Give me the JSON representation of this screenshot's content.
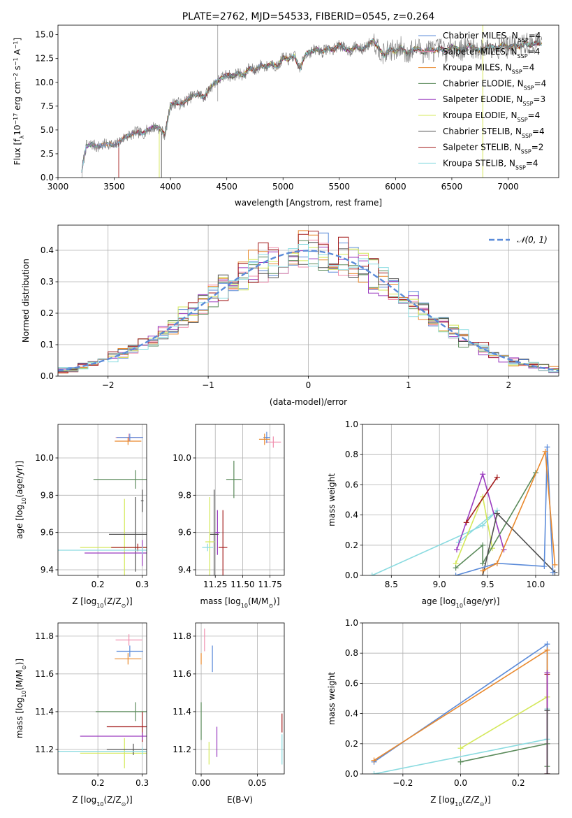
{
  "chart_data": [
    {
      "id": "spectrum",
      "type": "line",
      "title": "PLATE=2762, MJD=54533, FIBERID=0545, z=0.264",
      "xlabel": "wavelength [Angstrom, rest frame]",
      "ylabel_parts": [
        "Flux [f",
        "λ",
        "10",
        "−17",
        " erg cm",
        "−2",
        " s",
        "−1",
        " A",
        "−1",
        "]"
      ],
      "xlim": [
        3000,
        7450
      ],
      "ylim": [
        0,
        16
      ],
      "xticks": [
        3000,
        3500,
        4000,
        4500,
        5000,
        5500,
        6000,
        6500,
        7000
      ],
      "yticks": [
        0.0,
        2.5,
        5.0,
        7.5,
        10.0,
        12.5,
        15.0
      ],
      "grid": false,
      "legend_position": "right",
      "observed_spectrum": {
        "color": "#777777",
        "x": [
          3200,
          3250,
          3300,
          3350,
          3400,
          3450,
          3500,
          3550,
          3600,
          3650,
          3700,
          3750,
          3800,
          3850,
          3900,
          3950,
          4000,
          4050,
          4100,
          4150,
          4200,
          4250,
          4300,
          4350,
          4400,
          4450,
          4500,
          4550,
          4600,
          4650,
          4700,
          4750,
          4800,
          4850,
          4900,
          4950,
          5000,
          5050,
          5100,
          5150,
          5200,
          5250,
          5300,
          5350,
          5400,
          5450,
          5500,
          5550,
          5600,
          5650,
          5700,
          5750,
          5800,
          5850,
          5900,
          5950,
          6000,
          6050,
          6100,
          6150,
          6200,
          6250,
          6300,
          6350,
          6400,
          6450,
          6500,
          6550,
          6600,
          6650,
          6700,
          6750,
          6800,
          6850,
          6900,
          6950,
          7000,
          7050,
          7100,
          7150,
          7200,
          7250,
          7300
        ],
        "y": [
          0.0,
          3.3,
          3.5,
          3.2,
          3.4,
          3.6,
          3.3,
          3.8,
          4.3,
          4.5,
          4.8,
          4.6,
          5.0,
          5.3,
          5.2,
          4.5,
          7.6,
          7.9,
          7.7,
          8.2,
          8.6,
          8.8,
          8.4,
          9.4,
          10.0,
          10.4,
          10.8,
          10.6,
          11.0,
          10.7,
          11.5,
          11.2,
          11.8,
          11.6,
          12.0,
          11.6,
          12.6,
          12.4,
          12.8,
          11.4,
          13.0,
          13.2,
          13.5,
          13.2,
          13.6,
          13.4,
          14.0,
          13.5,
          13.3,
          13.8,
          13.4,
          13.9,
          14.4,
          13.6,
          12.8,
          13.5,
          13.2,
          13.7,
          13.0,
          13.4,
          13.6,
          13.1,
          13.5,
          13.3,
          13.6,
          13.2,
          13.8,
          13.5,
          13.4,
          13.9,
          13.6,
          13.3,
          13.7,
          13.8,
          13.5,
          14.0,
          13.6,
          13.9,
          13.7,
          14.1,
          13.9,
          14.2,
          14.0
        ]
      },
      "series": [
        {
          "name_parts": [
            "Chabrier MILES, N",
            "SSP",
            "=4"
          ],
          "color": "#5b8bd9"
        },
        {
          "name_parts": [
            "Salpeter MILES, N",
            "SSP",
            "=4"
          ],
          "color": "#f08cac"
        },
        {
          "name_parts": [
            "Kroupa MILES, N",
            "SSP",
            "=4"
          ],
          "color": "#e9892e"
        },
        {
          "name_parts": [
            "Chabrier ELODIE, N",
            "SSP",
            "=4"
          ],
          "color": "#5a8a5a"
        },
        {
          "name_parts": [
            "Salpeter ELODIE, N",
            "SSP",
            "=3"
          ],
          "color": "#9a3bbf"
        },
        {
          "name_parts": [
            "Kroupa ELODIE, N",
            "SSP",
            "=4"
          ],
          "color": "#d4e85a"
        },
        {
          "name_parts": [
            "Chabrier STELIB, N",
            "SSP",
            "=4"
          ],
          "color": "#505050"
        },
        {
          "name_parts": [
            "Salpeter STELIB, N",
            "SSP",
            "=2"
          ],
          "color": "#a31c1c"
        },
        {
          "name_parts": [
            "Kroupa STELIB, N",
            "SSP",
            "=4"
          ],
          "color": "#8adbe0"
        }
      ],
      "model_x_range": [
        3200,
        7300
      ],
      "model_start": {
        "Kroupa ELODIE": 3900,
        "Salpeter STELIB": 3540,
        "Chabrier STELIB": 3920
      }
    },
    {
      "id": "residuals",
      "type": "line",
      "xlabel": "(data-model)/error",
      "ylabel": "Normed distribution",
      "xlim": [
        -2.5,
        2.5
      ],
      "ylim": [
        0,
        0.48
      ],
      "xticks": [
        -2,
        -1,
        0,
        1,
        2
      ],
      "yticks": [
        0.0,
        0.1,
        0.2,
        0.3,
        0.4
      ],
      "grid": true,
      "legend_position": "top-right",
      "legend": "𝒩(0, 1)",
      "gaussian_color": "#5b8bd9",
      "bin_width": 0.1,
      "bin_start": -2.5
    },
    {
      "id": "age-vs-Z",
      "type": "scatter",
      "xlabel_parts": [
        "Z [log",
        "10",
        "(Z/Z",
        "⊙",
        ")]"
      ],
      "ylabel_parts": [
        "age  [log",
        "10",
        "(age/yr)]"
      ],
      "xlim": [
        0.11,
        0.31
      ],
      "ylim": [
        9.37,
        10.18
      ],
      "xticks": [
        0.2,
        0.3
      ],
      "yticks": [
        9.4,
        9.6,
        9.8,
        10.0
      ],
      "grid": true,
      "points": [
        {
          "color": "#f08cac",
          "x": 0.27,
          "y": 10.11,
          "xerr": 0.03,
          "yerr": 0.02
        },
        {
          "color": "#5b8bd9",
          "x": 0.272,
          "y": 10.11,
          "xerr": 0.03,
          "yerr": 0.02
        },
        {
          "color": "#e9892e",
          "x": 0.268,
          "y": 10.09,
          "xerr": 0.03,
          "yerr": 0.02
        },
        {
          "color": "#5a8a5a",
          "x": 0.285,
          "y": 9.885,
          "xerr": 0.095,
          "yerr": 0.05
        },
        {
          "color": "#505050",
          "x": 0.3,
          "y": 9.77,
          "xerr": 0.003,
          "yerr": 0.06
        },
        {
          "color": "#d4e85a",
          "x": 0.26,
          "y": 9.52,
          "xerr": 0.1,
          "yerr": 0.26
        },
        {
          "color": "#505050",
          "x": 0.285,
          "y": 9.59,
          "xerr": 0.06,
          "yerr": 0.2
        },
        {
          "color": "#a31c1c",
          "x": 0.29,
          "y": 9.52,
          "xerr": 0.06,
          "yerr": 0.02
        },
        {
          "color": "#9a3bbf",
          "x": 0.3,
          "y": 9.49,
          "xerr": 0.13,
          "yerr": 0.07
        },
        {
          "color": "#8adbe0",
          "x": 0.3,
          "y": 9.505,
          "xerr": 0.19,
          "yerr": 0.02
        }
      ]
    },
    {
      "id": "age-vs-mass",
      "type": "scatter",
      "xlabel_parts": [
        "mass [log",
        "10",
        "(M/M",
        "⊙",
        ")]"
      ],
      "xlim": [
        11.07,
        11.88
      ],
      "ylim": [
        9.37,
        10.18
      ],
      "xticks": [
        11.25,
        11.5,
        11.75
      ],
      "xtick_labels": [
        "11.25",
        "11.50",
        "11.75"
      ],
      "yticks": [
        9.4,
        9.6,
        9.8,
        10.0
      ],
      "grid": true,
      "points": [
        {
          "color": "#f08cac",
          "x": 11.78,
          "y": 10.085,
          "xerr": 0.07,
          "yerr": 0.03
        },
        {
          "color": "#5b8bd9",
          "x": 11.72,
          "y": 10.11,
          "xerr": 0.03,
          "yerr": 0.03
        },
        {
          "color": "#e9892e",
          "x": 11.7,
          "y": 10.1,
          "xerr": 0.05,
          "yerr": 0.03
        },
        {
          "color": "#5a8a5a",
          "x": 11.42,
          "y": 9.885,
          "xerr": 0.07,
          "yerr": 0.1
        },
        {
          "color": "#a31c1c",
          "x": 11.32,
          "y": 9.52,
          "xerr": 0.04,
          "yerr": 0.2
        },
        {
          "color": "#9a3bbf",
          "x": 11.27,
          "y": 9.6,
          "xerr": 0.02,
          "yerr": 0.12
        },
        {
          "color": "#505050",
          "x": 11.24,
          "y": 9.59,
          "xerr": 0.04,
          "yerr": 0.24
        },
        {
          "color": "#d4e85a",
          "x": 11.2,
          "y": 9.55,
          "xerr": 0.04,
          "yerr": 0.24
        },
        {
          "color": "#8adbe0",
          "x": 11.18,
          "y": 9.52,
          "xerr": 0.05,
          "yerr": 0.02
        }
      ]
    },
    {
      "id": "weight-vs-age",
      "type": "line",
      "xlabel_parts": [
        "age  [log",
        "10",
        "(age/yr)]"
      ],
      "ylabel": "mass weight",
      "xlim": [
        8.2,
        10.24
      ],
      "ylim": [
        0,
        1
      ],
      "xticks": [
        8.5,
        9.0,
        9.5,
        10.0
      ],
      "xtick_labels": [
        "8.5",
        "9.0",
        "9.5",
        "10.0"
      ],
      "yticks": [
        0.0,
        0.2,
        0.4,
        0.6,
        0.8,
        1.0
      ],
      "grid": true,
      "series": [
        {
          "color": "#8adbe0",
          "x": [
            8.3,
            9.45,
            9.6,
            9.2
          ],
          "y": [
            0.0,
            0.33,
            0.43,
            0.22
          ]
        },
        {
          "color": "#9a3bbf",
          "x": [
            9.18,
            9.45,
            9.67
          ],
          "y": [
            0.17,
            0.67,
            0.17
          ]
        },
        {
          "color": "#d4e85a",
          "x": [
            9.17,
            9.45,
            9.55
          ],
          "y": [
            0.08,
            0.52,
            0.18
          ]
        },
        {
          "color": "#a31c1c",
          "x": [
            9.28,
            9.6
          ],
          "y": [
            0.35,
            0.65
          ]
        },
        {
          "color": "#5a8a5a",
          "x": [
            9.17,
            9.45,
            9.45,
            10.0
          ],
          "y": [
            0.05,
            0.2,
            0.08,
            0.68
          ]
        },
        {
          "color": "#505050",
          "x": [
            9.45,
            9.6,
            10.2
          ],
          "y": [
            0.0,
            0.41,
            0.02
          ]
        },
        {
          "color": "#5b8bd9",
          "x": [
            9.17,
            9.6,
            10.09,
            10.12,
            10.18
          ],
          "y": [
            0.0,
            0.08,
            0.06,
            0.85,
            0.02
          ]
        },
        {
          "color": "#e9892e",
          "x": [
            9.45,
            9.6,
            10.1,
            10.2
          ],
          "y": [
            0.03,
            0.08,
            0.82,
            0.07
          ]
        }
      ]
    },
    {
      "id": "mass-vs-Z",
      "type": "scatter",
      "xlabel_parts": [
        "Z [log",
        "10",
        "(Z/Z",
        "⊙",
        ")]"
      ],
      "ylabel_parts": [
        "mass [log",
        "10",
        "(M/M",
        "⊙",
        ")]"
      ],
      "xlim": [
        0.11,
        0.31
      ],
      "ylim": [
        11.07,
        11.87
      ],
      "xticks": [
        0.2,
        0.3
      ],
      "yticks": [
        11.2,
        11.4,
        11.6,
        11.8
      ],
      "grid": true,
      "points": [
        {
          "color": "#f08cac",
          "x": 0.27,
          "y": 11.78,
          "xerr": 0.03,
          "yerr": 0.03
        },
        {
          "color": "#5b8bd9",
          "x": 0.272,
          "y": 11.72,
          "xerr": 0.03,
          "yerr": 0.03
        },
        {
          "color": "#e9892e",
          "x": 0.268,
          "y": 11.68,
          "xerr": 0.03,
          "yerr": 0.03
        },
        {
          "color": "#5a8a5a",
          "x": 0.285,
          "y": 11.4,
          "xerr": 0.09,
          "yerr": 0.05
        },
        {
          "color": "#a31c1c",
          "x": 0.3,
          "y": 11.32,
          "xerr": 0.08,
          "yerr": 0.08
        },
        {
          "color": "#9a3bbf",
          "x": 0.3,
          "y": 11.27,
          "xerr": 0.14,
          "yerr": 0.02
        },
        {
          "color": "#d4e85a",
          "x": 0.26,
          "y": 11.18,
          "xerr": 0.1,
          "yerr": 0.08
        },
        {
          "color": "#505050",
          "x": 0.28,
          "y": 11.2,
          "xerr": 0.06,
          "yerr": 0.03
        },
        {
          "color": "#8adbe0",
          "x": 0.3,
          "y": 11.19,
          "xerr": 0.19,
          "yerr": 0.02
        }
      ]
    },
    {
      "id": "mass-vs-EBV",
      "type": "scatter",
      "xlabel": "E(B-V)",
      "xlim": [
        -0.005,
        0.074
      ],
      "ylim": [
        11.07,
        11.87
      ],
      "xticks": [
        0.0,
        0.05
      ],
      "xtick_labels": [
        "0.00",
        "0.05"
      ],
      "yticks": [
        11.2,
        11.4,
        11.6,
        11.8
      ],
      "grid": true,
      "points": [
        {
          "color": "#f08cac",
          "x": 0.003,
          "y": 11.78,
          "yerr": 0.06
        },
        {
          "color": "#5b8bd9",
          "x": 0.01,
          "y": 11.68,
          "yerr": 0.07
        },
        {
          "color": "#e9892e",
          "x": 0.0,
          "y": 11.68,
          "yerr": 0.03
        },
        {
          "color": "#5a8a5a",
          "x": 0.0,
          "y": 11.35,
          "yerr": 0.1
        },
        {
          "color": "#9a3bbf",
          "x": 0.014,
          "y": 11.24,
          "yerr": 0.08
        },
        {
          "color": "#d4e85a",
          "x": 0.007,
          "y": 11.18,
          "yerr": 0.06
        },
        {
          "color": "#a31c1c",
          "x": 0.072,
          "y": 11.34,
          "yerr": 0.05
        },
        {
          "color": "#8adbe0",
          "x": 0.072,
          "y": 11.2,
          "yerr": 0.08
        }
      ]
    },
    {
      "id": "weight-vs-Z",
      "type": "line",
      "xlabel_parts": [
        "Z [log",
        "10",
        "(Z/Z",
        "⊙",
        ")]"
      ],
      "ylabel": "mass weight",
      "xlim": [
        -0.34,
        0.34
      ],
      "ylim": [
        0,
        1
      ],
      "xticks": [
        -0.2,
        0.0,
        0.2
      ],
      "xtick_labels": [
        "−0.2",
        "0.0",
        "0.2"
      ],
      "yticks": [
        0.0,
        0.2,
        0.4,
        0.6,
        0.8,
        1.0
      ],
      "grid": true,
      "series": [
        {
          "color": "#5b8bd9",
          "x": [
            -0.3,
            0.3,
            0.3
          ],
          "y": [
            0.08,
            0.86,
            0.0
          ]
        },
        {
          "color": "#e9892e",
          "x": [
            -0.3,
            0.3,
            0.3
          ],
          "y": [
            0.09,
            0.82,
            0.0
          ]
        },
        {
          "color": "#d4e85a",
          "x": [
            0.0,
            0.3,
            0.3
          ],
          "y": [
            0.17,
            0.51,
            0.0
          ]
        },
        {
          "color": "#8adbe0",
          "x": [
            -0.3,
            0.3,
            0.3
          ],
          "y": [
            0.0,
            0.23,
            0.43
          ]
        },
        {
          "color": "#5a8a5a",
          "x": [
            0.0,
            0.3,
            0.3
          ],
          "y": [
            0.08,
            0.2,
            0.05
          ]
        },
        {
          "color": "#a31c1c",
          "x": [
            0.3,
            0.3
          ],
          "y": [
            0.0,
            0.66
          ]
        },
        {
          "color": "#9a3bbf",
          "x": [
            0.3,
            0.3
          ],
          "y": [
            0.0,
            0.67
          ]
        },
        {
          "color": "#505050",
          "x": [
            0.3,
            0.3
          ],
          "y": [
            0.0,
            0.42
          ]
        }
      ]
    }
  ]
}
